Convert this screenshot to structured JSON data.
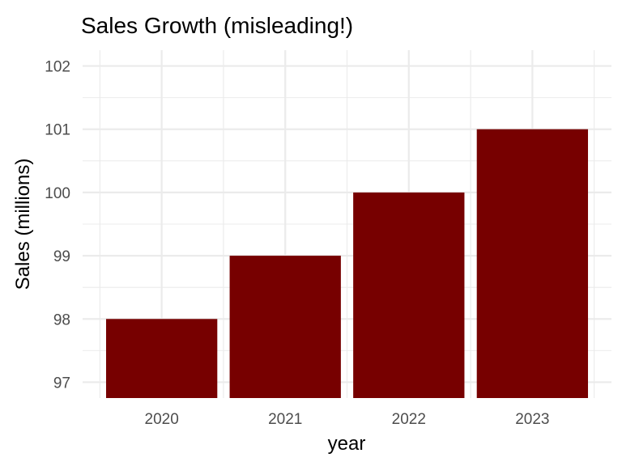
{
  "chart_data": {
    "type": "bar",
    "title": "Sales Growth (misleading!)",
    "xlabel": "year",
    "ylabel": "Sales (millions)",
    "categories": [
      "2020",
      "2021",
      "2022",
      "2023"
    ],
    "x": [
      2020,
      2021,
      2022,
      2023
    ],
    "values": [
      98,
      99,
      100,
      101
    ],
    "ylim": [
      96.75,
      102.25
    ],
    "xlim": [
      2019.36,
      2023.64
    ],
    "yticks": [
      97,
      98,
      99,
      100,
      101,
      102
    ],
    "grid": true,
    "bar_color": "#770000"
  }
}
